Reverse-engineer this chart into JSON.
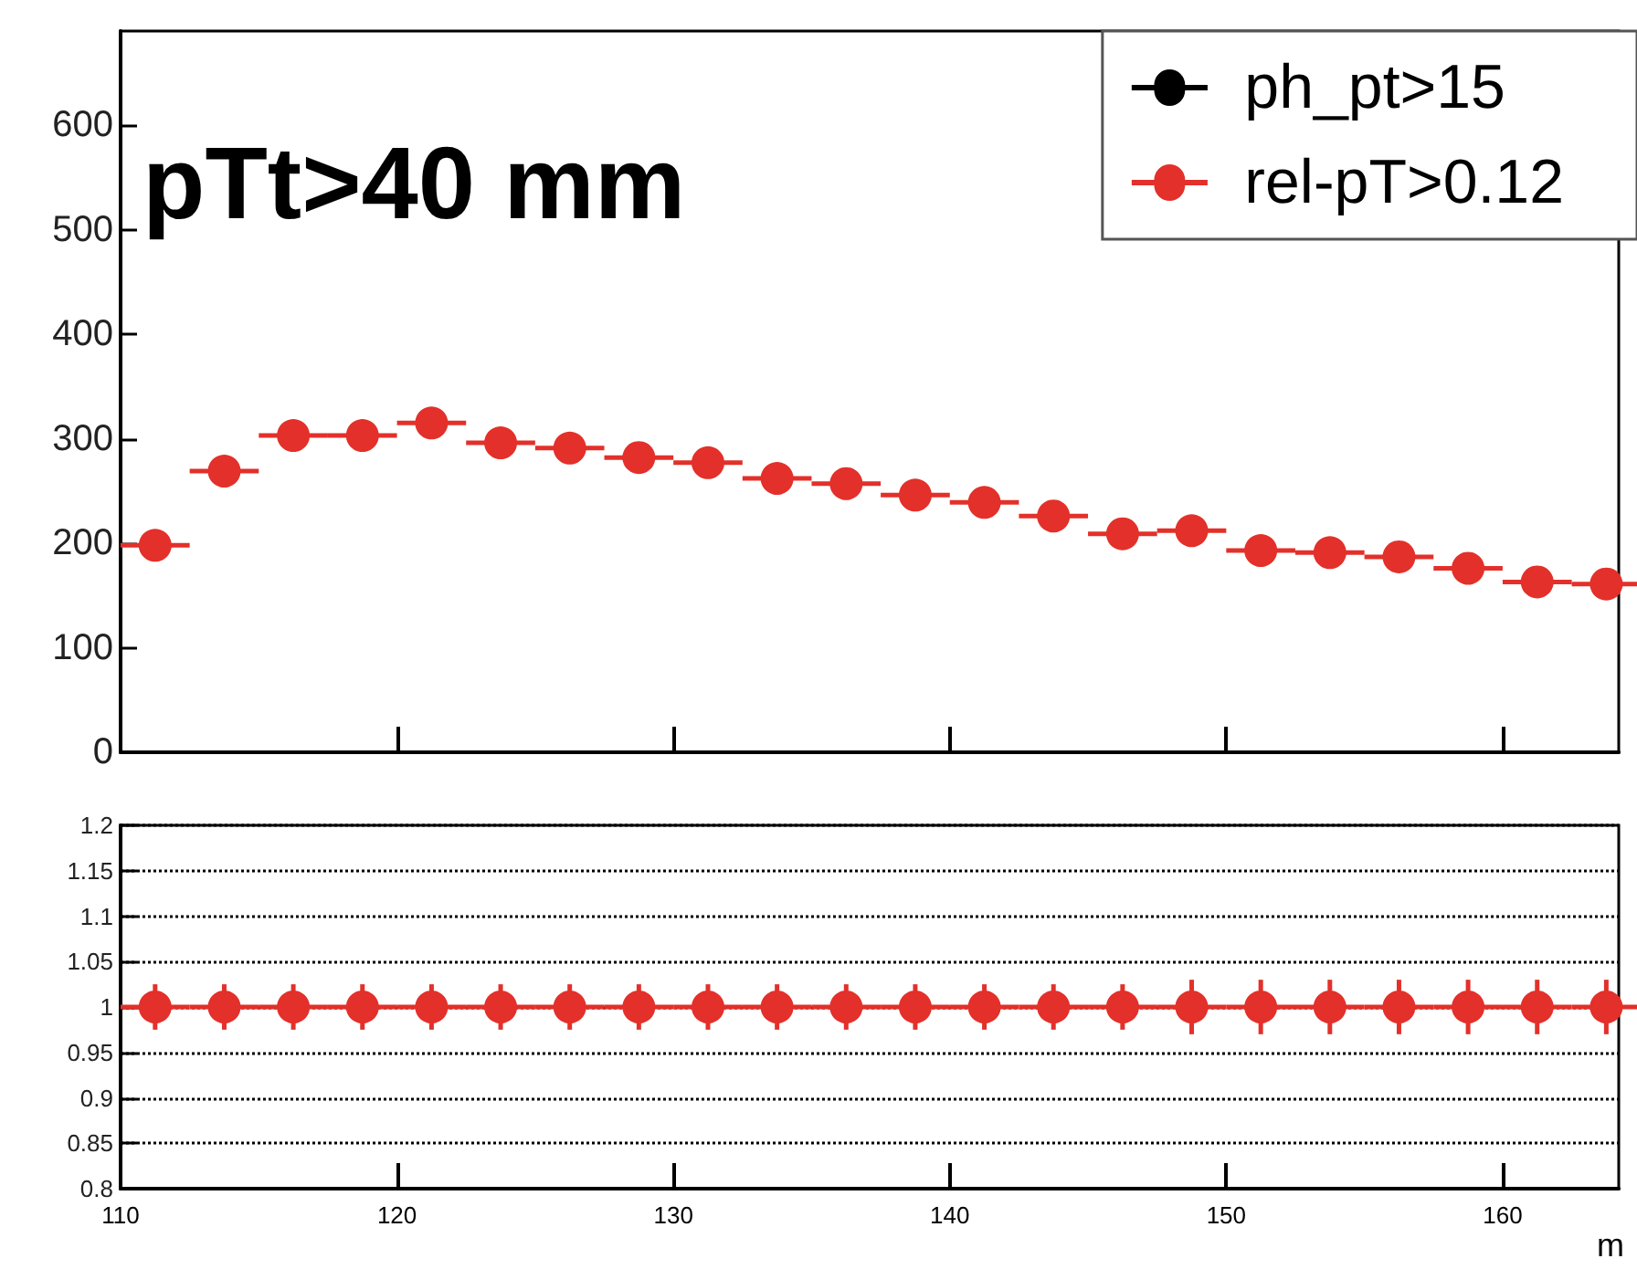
{
  "chart_data": [
    {
      "type": "scatter",
      "x": [
        111.25,
        113.75,
        116.25,
        118.75,
        121.25,
        123.75,
        126.25,
        128.75,
        131.25,
        133.75,
        136.25,
        138.75,
        141.25,
        143.75,
        146.25,
        148.75,
        151.25,
        153.75,
        156.25,
        158.75,
        161.25,
        163.75
      ],
      "series": [
        {
          "name": "ph_pt>15",
          "color": "#000000",
          "values": [
            null,
            null,
            null,
            null,
            null,
            null,
            null,
            null,
            null,
            null,
            null,
            null,
            null,
            null,
            null,
            null,
            null,
            null,
            null,
            null,
            null,
            null
          ]
        },
        {
          "name": "rel-pT>0.12",
          "color": "#e3302a",
          "values": [
            198,
            269,
            303,
            303,
            315,
            296,
            291,
            282,
            277,
            262,
            257,
            246,
            239,
            226,
            209,
            212,
            193,
            191,
            187,
            176,
            163,
            161
          ],
          "xerrors": [
            1.25,
            1.25,
            1.25,
            1.25,
            1.25,
            1.25,
            1.25,
            1.25,
            1.25,
            1.25,
            1.25,
            1.25,
            1.25,
            1.25,
            1.25,
            1.25,
            1.25,
            1.25,
            1.25,
            1.25,
            1.25,
            1.25
          ]
        }
      ],
      "annotations": [
        "pTt>40 mm"
      ],
      "xlim": [
        110,
        164.2
      ],
      "xticks": [
        110,
        120,
        130,
        140,
        150,
        160
      ],
      "ylim": [
        0,
        690
      ],
      "yticks": [
        0,
        100,
        200,
        300,
        400,
        500,
        600
      ],
      "tick_labels": "y",
      "legend": "top right",
      "marker": "circle",
      "grid": false
    },
    {
      "type": "scatter",
      "x": [
        111.25,
        113.75,
        116.25,
        118.75,
        121.25,
        123.75,
        126.25,
        128.75,
        131.25,
        133.75,
        136.25,
        138.75,
        141.25,
        143.75,
        146.25,
        148.75,
        151.25,
        153.75,
        156.25,
        158.75,
        161.25,
        163.75
      ],
      "series": [
        {
          "color": "#e3302a",
          "values": [
            1,
            1,
            1,
            1,
            1,
            1,
            1,
            1,
            1,
            1,
            1,
            1,
            1,
            1,
            1,
            1,
            1,
            1,
            1,
            1,
            1,
            1
          ],
          "errors": [
            0.025,
            0.025,
            0.025,
            0.025,
            0.025,
            0.025,
            0.025,
            0.025,
            0.025,
            0.025,
            0.025,
            0.025,
            0.025,
            0.025,
            0.025,
            0.03,
            0.03,
            0.03,
            0.03,
            0.03,
            0.03,
            0.03
          ],
          "xerrors": [
            1.25,
            1.25,
            1.25,
            1.25,
            1.25,
            1.25,
            1.25,
            1.25,
            1.25,
            1.25,
            1.25,
            1.25,
            1.25,
            1.25,
            1.25,
            1.25,
            1.25,
            1.25,
            1.25,
            1.25,
            1.25,
            1.25
          ]
        }
      ],
      "xlabel": "m",
      "xlim": [
        110,
        164.2
      ],
      "xticks": [
        110,
        120,
        130,
        140,
        150,
        160
      ],
      "ylim": [
        0.8,
        1.2
      ],
      "yticks": [
        0.8,
        0.85,
        0.9,
        0.95,
        1,
        1.05,
        1.1,
        1.15,
        1.2
      ],
      "grid": "y",
      "marker": "circle",
      "legend": false
    }
  ]
}
